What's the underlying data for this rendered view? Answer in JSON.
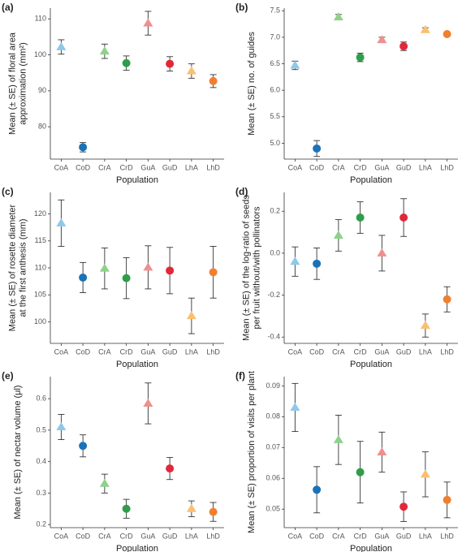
{
  "chart_data": [
    {
      "type": "scatter",
      "panel_label": "(a)",
      "y_label": [
        "Mean (± SE) of floral area",
        "approximation (mm²)"
      ],
      "x_label": "Population",
      "categories": [
        "CoA",
        "CoD",
        "CrA",
        "CrD",
        "GuA",
        "GuD",
        "LhA",
        "LhD"
      ],
      "values": [
        102.2,
        74.3,
        101,
        97.7,
        108.8,
        97.5,
        95.5,
        92.7
      ],
      "errors": [
        2,
        1.3,
        2,
        2,
        3.3,
        2,
        2,
        1.8
      ],
      "markers": [
        "triangle",
        "circle",
        "triangle",
        "circle",
        "triangle",
        "circle",
        "triangle",
        "circle"
      ],
      "colors": [
        "#8fc8e8",
        "#1a72b8",
        "#8fd18a",
        "#2e9e4a",
        "#f08f8f",
        "#e0283a",
        "#f8c070",
        "#f08030"
      ],
      "ylim": [
        71,
        113
      ],
      "yticks": [
        80,
        90,
        100,
        110
      ]
    },
    {
      "type": "scatter",
      "panel_label": "(b)",
      "y_label": [
        "Mean (± SE) no. of guides"
      ],
      "x_label": "Population",
      "categories": [
        "CoA",
        "CoD",
        "CrA",
        "CrD",
        "GuA",
        "GuD",
        "LhA",
        "LhD"
      ],
      "values": [
        6.47,
        4.9,
        7.38,
        6.62,
        6.95,
        6.83,
        7.14,
        7.06
      ],
      "errors": [
        0.08,
        0.15,
        0.05,
        0.08,
        0.05,
        0.08,
        0.04,
        0.02
      ],
      "markers": [
        "triangle",
        "circle",
        "triangle",
        "circle",
        "triangle",
        "circle",
        "triangle",
        "circle"
      ],
      "colors": [
        "#8fc8e8",
        "#1a72b8",
        "#8fd18a",
        "#2e9e4a",
        "#f08f8f",
        "#e0283a",
        "#f8c070",
        "#f08030"
      ],
      "ylim": [
        4.7,
        7.55
      ],
      "yticks": [
        {
          "value": 5,
          "label": "5.0"
        },
        5.5,
        {
          "value": 6,
          "label": "6.0"
        },
        6.5,
        {
          "value": 7,
          "label": "7.0"
        },
        7.5
      ]
    },
    {
      "type": "scatter",
      "panel_label": "(c)",
      "y_label": [
        "Mean (± SE) of rosette diameter",
        "at the first anthesis (mm)"
      ],
      "x_label": "Population",
      "categories": [
        "CoA",
        "CoD",
        "CrA",
        "CrD",
        "GuA",
        "GuD",
        "LhA",
        "LhD"
      ],
      "values": [
        118.3,
        108.2,
        109.9,
        108.1,
        110.1,
        109.5,
        101.1,
        109.2
      ],
      "errors": [
        4.3,
        2.8,
        3.8,
        3.8,
        4,
        4.3,
        3.3,
        4.8
      ],
      "markers": [
        "triangle",
        "circle",
        "triangle",
        "circle",
        "triangle",
        "circle",
        "triangle",
        "circle"
      ],
      "colors": [
        "#8fc8e8",
        "#1a72b8",
        "#8fd18a",
        "#2e9e4a",
        "#f08f8f",
        "#e0283a",
        "#f8c070",
        "#f08030"
      ],
      "ylim": [
        96,
        124
      ],
      "yticks": [
        100,
        105,
        110,
        115,
        120
      ]
    },
    {
      "type": "scatter",
      "panel_label": "(d)",
      "y_label": [
        "Mean (± SE) of the log-ratio of seeds",
        "per fruit without/with pollinators"
      ],
      "x_label": "Population",
      "categories": [
        "CoA",
        "CoD",
        "CrA",
        "CrD",
        "GuA",
        "GuD",
        "LhA",
        "LhD"
      ],
      "values": [
        -0.04,
        -0.05,
        0.085,
        0.17,
        0.0,
        0.17,
        -0.345,
        -0.22
      ],
      "errors": [
        0.07,
        0.075,
        0.075,
        0.075,
        0.085,
        0.09,
        0.055,
        0.06
      ],
      "markers": [
        "triangle",
        "circle",
        "triangle",
        "circle",
        "triangle",
        "circle",
        "triangle",
        "circle"
      ],
      "colors": [
        "#8fc8e8",
        "#1a72b8",
        "#8fd18a",
        "#2e9e4a",
        "#f08f8f",
        "#e0283a",
        "#f8c070",
        "#f08030"
      ],
      "ylim": [
        -0.43,
        0.29
      ],
      "yticks": [
        -0.4,
        -0.2,
        {
          "value": 0,
          "label": "0.0"
        },
        0.2
      ]
    },
    {
      "type": "scatter",
      "panel_label": "(e)",
      "y_label": [
        "Mean (± SE) of nectar volume (μl)"
      ],
      "x_label": "Population",
      "categories": [
        "CoA",
        "CoD",
        "CrA",
        "CrD",
        "GuA",
        "GuD",
        "LhA",
        "LhD"
      ],
      "values": [
        0.51,
        0.45,
        0.33,
        0.25,
        0.585,
        0.378,
        0.25,
        0.24
      ],
      "errors": [
        0.04,
        0.035,
        0.03,
        0.03,
        0.065,
        0.035,
        0.025,
        0.03
      ],
      "markers": [
        "triangle",
        "circle",
        "triangle",
        "circle",
        "triangle",
        "circle",
        "triangle",
        "circle"
      ],
      "colors": [
        "#8fc8e8",
        "#1a72b8",
        "#8fd18a",
        "#2e9e4a",
        "#f08f8f",
        "#e0283a",
        "#f8c070",
        "#f08030"
      ],
      "ylim": [
        0.19,
        0.67
      ],
      "yticks": [
        0.2,
        0.3,
        0.4,
        0.5,
        0.6
      ]
    },
    {
      "type": "scatter",
      "panel_label": "(f)",
      "y_label": [
        "Mean (± SE) proportion of visits per plant"
      ],
      "x_label": "Population",
      "categories": [
        "CoA",
        "CoD",
        "CrA",
        "CrD",
        "GuA",
        "GuD",
        "LhA",
        "LhD"
      ],
      "values": [
        0.083,
        0.0563,
        0.0725,
        0.062,
        0.0685,
        0.0508,
        0.0613,
        0.053
      ],
      "errors": [
        0.0078,
        0.0075,
        0.008,
        0.01,
        0.0065,
        0.0048,
        0.0073,
        0.0058
      ],
      "markers": [
        "triangle",
        "circle",
        "triangle",
        "circle",
        "triangle",
        "circle",
        "triangle",
        "circle"
      ],
      "colors": [
        "#8fc8e8",
        "#1a72b8",
        "#8fd18a",
        "#2e9e4a",
        "#f08f8f",
        "#e0283a",
        "#f8c070",
        "#f08030"
      ],
      "ylim": [
        0.044,
        0.093
      ],
      "yticks": [
        0.05,
        0.06,
        0.07,
        0.08,
        0.09
      ]
    }
  ]
}
